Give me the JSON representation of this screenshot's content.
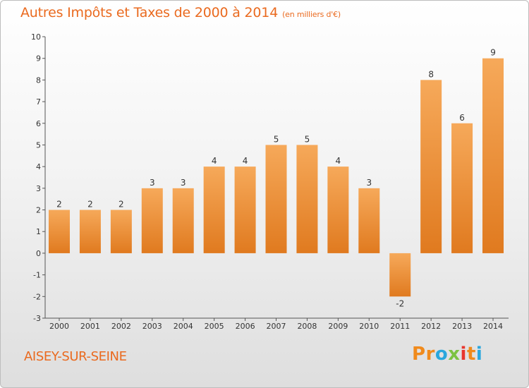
{
  "header": {
    "title": "Autres Impôts et Taxes de 2000 à 2014",
    "subtitle": "(en milliers d'€)"
  },
  "footer": {
    "location": "AISEY-SUR-SEINE",
    "logo_text": "Proxiti",
    "logo_colors": [
      "#f08a1c",
      "#f08a1c",
      "#2aa7dd",
      "#7cc242",
      "#e8362e",
      "#f08a1c",
      "#2aa7dd"
    ]
  },
  "colors": {
    "bar_light": "#f6a95a",
    "bar_dark": "#e07a1f",
    "axis": "#555555",
    "text": "#333333"
  },
  "chart_data": {
    "type": "bar",
    "title": "Autres Impôts et Taxes de 2000 à 2014",
    "subtitle": "(en milliers d'€)",
    "categories": [
      "2000",
      "2001",
      "2002",
      "2003",
      "2004",
      "2005",
      "2006",
      "2007",
      "2008",
      "2009",
      "2010",
      "2011",
      "2012",
      "2013",
      "2014"
    ],
    "values": [
      2,
      2,
      2,
      3,
      3,
      4,
      4,
      5,
      5,
      4,
      3,
      -2,
      8,
      6,
      9
    ],
    "data_labels": [
      "2",
      "2",
      "2",
      "3",
      "3",
      "4",
      "4",
      "5",
      "5",
      "4",
      "3",
      "-2",
      "8",
      "6",
      "9"
    ],
    "yticks": [
      "10",
      "9",
      "8",
      "7",
      "6",
      "5",
      "4",
      "3",
      "2",
      "1",
      "0",
      "-1",
      "-2",
      "-3"
    ],
    "ylim": [
      -3,
      10
    ],
    "xlabel": "",
    "ylabel": "",
    "grid": false,
    "legend": "none"
  }
}
